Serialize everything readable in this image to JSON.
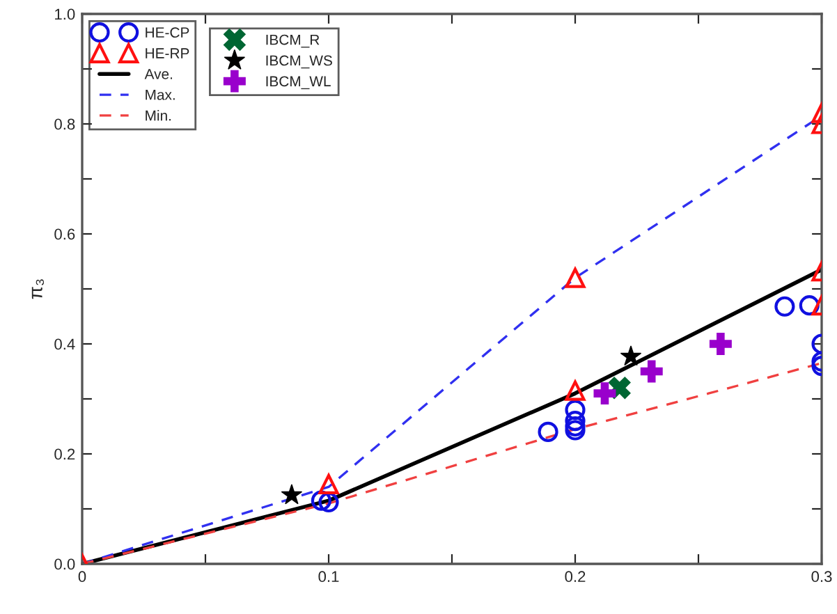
{
  "chart_data": {
    "type": "scatter",
    "ylabel": "π₃",
    "xlim": [
      0,
      0.3
    ],
    "ylim": [
      0,
      1.0
    ],
    "xticks": [
      {
        "value": 0,
        "label": "0"
      },
      {
        "value": 0.05,
        "label": null
      },
      {
        "value": 0.1,
        "label": "0.1"
      },
      {
        "value": 0.15,
        "label": null
      },
      {
        "value": 0.2,
        "label": "0.2"
      },
      {
        "value": 0.25,
        "label": null
      },
      {
        "value": 0.3,
        "label": "0.3"
      }
    ],
    "yticks": [
      {
        "value": 0,
        "label": "0.0"
      },
      {
        "value": 0.1,
        "label": null
      },
      {
        "value": 0.2,
        "label": "0.2"
      },
      {
        "value": 0.3,
        "label": null
      },
      {
        "value": 0.4,
        "label": "0.4"
      },
      {
        "value": 0.5,
        "label": null
      },
      {
        "value": 0.6,
        "label": "0.6"
      },
      {
        "value": 0.7,
        "label": null
      },
      {
        "value": 0.8,
        "label": "0.8"
      },
      {
        "value": 0.9,
        "label": null
      },
      {
        "value": 1.0,
        "label": "1.0"
      }
    ],
    "grid": false,
    "legend": "top left",
    "series": [
      {
        "name": "HE-CP",
        "marker": "circle",
        "color": "#1010e0",
        "x": [
          0.097,
          0.1,
          0.189,
          0.2,
          0.2,
          0.2,
          0.2,
          0.285,
          0.295,
          0.3,
          0.3,
          0.3
        ],
        "values": [
          0.115,
          0.112,
          0.24,
          0.28,
          0.26,
          0.25,
          0.243,
          0.468,
          0.47,
          0.4,
          0.368,
          0.36
        ]
      },
      {
        "name": "HE-RP",
        "marker": "triangle",
        "color": "#ff1010",
        "x": [
          0,
          0.1,
          0.2,
          0.2,
          0.3,
          0.3,
          0.3,
          0.3
        ],
        "values": [
          0,
          0.145,
          0.52,
          0.315,
          0.82,
          0.8,
          0.532,
          0.47
        ]
      },
      {
        "name": "Ave.",
        "type": "line",
        "line_style": "solid",
        "color": "#000000",
        "x": [
          0,
          0.1,
          0.2,
          0.3
        ],
        "values": [
          0,
          0.115,
          0.31,
          0.535
        ]
      },
      {
        "name": "Max.",
        "type": "line",
        "line_style": "dashed",
        "color": "#3030f0",
        "x": [
          0,
          0.1,
          0.2,
          0.3
        ],
        "values": [
          0,
          0.14,
          0.52,
          0.815
        ]
      },
      {
        "name": "Min.",
        "type": "line",
        "line_style": "dashed",
        "color": "#f04040",
        "x": [
          0,
          0.1,
          0.2,
          0.3
        ],
        "values": [
          0,
          0.11,
          0.245,
          0.365
        ]
      },
      {
        "name": "IBCM_R",
        "marker": "x",
        "color": "#006633",
        "x": [
          0.218
        ],
        "values": [
          0.32
        ]
      },
      {
        "name": "IBCM_WS",
        "marker": "star",
        "color": "#000000",
        "x": [
          0.085,
          0.2226
        ],
        "values": [
          0.125,
          0.377
        ]
      },
      {
        "name": "IBCM_WL",
        "marker": "cross",
        "color": "#9900cc",
        "x": [
          0.212,
          0.231,
          0.259
        ],
        "values": [
          0.31,
          0.35,
          0.4
        ]
      }
    ]
  }
}
